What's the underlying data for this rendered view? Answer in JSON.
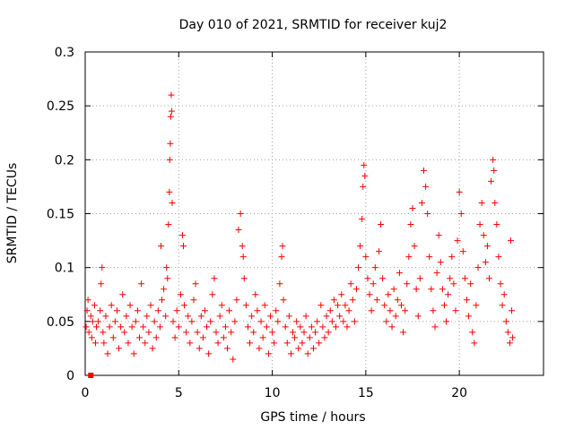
{
  "chart_data": {
    "type": "scatter",
    "title": "Day 010 of 2021, SRMTID for receiver kuj2",
    "xlabel": "GPS time / hours",
    "ylabel": "SRMTID / TECUs",
    "xlim": [
      0,
      24.5
    ],
    "ylim": [
      0,
      0.3
    ],
    "xticks": [
      "0",
      "5",
      "10",
      "15",
      "20"
    ],
    "yticks": [
      "0",
      "0.05",
      "0.1",
      "0.15",
      "0.2",
      "0.25",
      "0.3"
    ],
    "grid": true,
    "legend": "none",
    "marker_color": "#ff0000",
    "marker": "plus",
    "square_marker": {
      "x": 0.3,
      "y": 0.0
    },
    "series": [
      {
        "values": [
          [
            0.05,
            0.045
          ],
          [
            0.1,
            0.06
          ],
          [
            0.15,
            0.07
          ],
          [
            0.2,
            0.04
          ],
          [
            0.3,
            0.055
          ],
          [
            0.35,
            0.035
          ],
          [
            0.4,
            0.05
          ],
          [
            0.5,
            0.065
          ],
          [
            0.55,
            0.03
          ],
          [
            0.6,
            0.045
          ],
          [
            0.7,
            0.05
          ],
          [
            0.8,
            0.06
          ],
          [
            0.85,
            0.085
          ],
          [
            0.9,
            0.1
          ],
          [
            0.95,
            0.04
          ],
          [
            1.0,
            0.03
          ],
          [
            1.1,
            0.055
          ],
          [
            1.2,
            0.02
          ],
          [
            1.3,
            0.045
          ],
          [
            1.4,
            0.065
          ],
          [
            1.5,
            0.035
          ],
          [
            1.6,
            0.05
          ],
          [
            1.7,
            0.06
          ],
          [
            1.8,
            0.025
          ],
          [
            1.9,
            0.045
          ],
          [
            2.0,
            0.075
          ],
          [
            2.1,
            0.04
          ],
          [
            2.2,
            0.055
          ],
          [
            2.3,
            0.03
          ],
          [
            2.4,
            0.065
          ],
          [
            2.5,
            0.045
          ],
          [
            2.6,
            0.02
          ],
          [
            2.7,
            0.05
          ],
          [
            2.8,
            0.06
          ],
          [
            2.9,
            0.035
          ],
          [
            3.0,
            0.085
          ],
          [
            3.1,
            0.045
          ],
          [
            3.2,
            0.03
          ],
          [
            3.3,
            0.055
          ],
          [
            3.4,
            0.04
          ],
          [
            3.5,
            0.065
          ],
          [
            3.6,
            0.025
          ],
          [
            3.7,
            0.05
          ],
          [
            3.8,
            0.035
          ],
          [
            3.9,
            0.06
          ],
          [
            4.0,
            0.045
          ],
          [
            4.05,
            0.12
          ],
          [
            4.1,
            0.07
          ],
          [
            4.2,
            0.08
          ],
          [
            4.3,
            0.055
          ],
          [
            4.35,
            0.1
          ],
          [
            4.4,
            0.09
          ],
          [
            4.45,
            0.14
          ],
          [
            4.5,
            0.17
          ],
          [
            4.52,
            0.2
          ],
          [
            4.55,
            0.215
          ],
          [
            4.57,
            0.24
          ],
          [
            4.6,
            0.26
          ],
          [
            4.62,
            0.245
          ],
          [
            4.65,
            0.16
          ],
          [
            4.7,
            0.05
          ],
          [
            4.8,
            0.035
          ],
          [
            4.9,
            0.06
          ],
          [
            5.0,
            0.045
          ],
          [
            5.1,
            0.075
          ],
          [
            5.2,
            0.13
          ],
          [
            5.25,
            0.12
          ],
          [
            5.3,
            0.065
          ],
          [
            5.4,
            0.04
          ],
          [
            5.5,
            0.055
          ],
          [
            5.6,
            0.03
          ],
          [
            5.7,
            0.05
          ],
          [
            5.8,
            0.07
          ],
          [
            5.9,
            0.085
          ],
          [
            6.0,
            0.04
          ],
          [
            6.1,
            0.025
          ],
          [
            6.2,
            0.055
          ],
          [
            6.3,
            0.035
          ],
          [
            6.4,
            0.06
          ],
          [
            6.5,
            0.045
          ],
          [
            6.6,
            0.02
          ],
          [
            6.7,
            0.05
          ],
          [
            6.8,
            0.075
          ],
          [
            6.9,
            0.09
          ],
          [
            7.0,
            0.04
          ],
          [
            7.1,
            0.03
          ],
          [
            7.2,
            0.055
          ],
          [
            7.3,
            0.065
          ],
          [
            7.4,
            0.035
          ],
          [
            7.5,
            0.045
          ],
          [
            7.6,
            0.025
          ],
          [
            7.7,
            0.06
          ],
          [
            7.8,
            0.04
          ],
          [
            7.9,
            0.015
          ],
          [
            8.0,
            0.05
          ],
          [
            8.1,
            0.07
          ],
          [
            8.2,
            0.135
          ],
          [
            8.3,
            0.15
          ],
          [
            8.4,
            0.12
          ],
          [
            8.45,
            0.11
          ],
          [
            8.5,
            0.09
          ],
          [
            8.6,
            0.065
          ],
          [
            8.7,
            0.045
          ],
          [
            8.8,
            0.03
          ],
          [
            8.9,
            0.055
          ],
          [
            9.0,
            0.04
          ],
          [
            9.1,
            0.075
          ],
          [
            9.2,
            0.06
          ],
          [
            9.3,
            0.025
          ],
          [
            9.4,
            0.05
          ],
          [
            9.5,
            0.035
          ],
          [
            9.6,
            0.065
          ],
          [
            9.7,
            0.045
          ],
          [
            9.8,
            0.02
          ],
          [
            9.9,
            0.055
          ],
          [
            10.0,
            0.04
          ],
          [
            10.1,
            0.03
          ],
          [
            10.2,
            0.06
          ],
          [
            10.3,
            0.05
          ],
          [
            10.4,
            0.085
          ],
          [
            10.5,
            0.11
          ],
          [
            10.55,
            0.12
          ],
          [
            10.6,
            0.07
          ],
          [
            10.7,
            0.045
          ],
          [
            10.8,
            0.03
          ],
          [
            10.9,
            0.055
          ],
          [
            11.0,
            0.02
          ],
          [
            11.1,
            0.04
          ],
          [
            11.2,
            0.035
          ],
          [
            11.3,
            0.05
          ],
          [
            11.4,
            0.025
          ],
          [
            11.5,
            0.045
          ],
          [
            11.6,
            0.03
          ],
          [
            11.7,
            0.04
          ],
          [
            11.8,
            0.055
          ],
          [
            11.9,
            0.02
          ],
          [
            12.0,
            0.035
          ],
          [
            12.1,
            0.045
          ],
          [
            12.2,
            0.025
          ],
          [
            12.3,
            0.04
          ],
          [
            12.4,
            0.05
          ],
          [
            12.5,
            0.03
          ],
          [
            12.6,
            0.065
          ],
          [
            12.7,
            0.045
          ],
          [
            12.8,
            0.035
          ],
          [
            12.9,
            0.055
          ],
          [
            13.0,
            0.04
          ],
          [
            13.1,
            0.06
          ],
          [
            13.2,
            0.05
          ],
          [
            13.3,
            0.07
          ],
          [
            13.4,
            0.045
          ],
          [
            13.5,
            0.065
          ],
          [
            13.6,
            0.055
          ],
          [
            13.7,
            0.075
          ],
          [
            13.8,
            0.05
          ],
          [
            13.9,
            0.065
          ],
          [
            14.0,
            0.045
          ],
          [
            14.1,
            0.06
          ],
          [
            14.2,
            0.085
          ],
          [
            14.3,
            0.07
          ],
          [
            14.4,
            0.05
          ],
          [
            14.5,
            0.08
          ],
          [
            14.6,
            0.1
          ],
          [
            14.7,
            0.12
          ],
          [
            14.8,
            0.145
          ],
          [
            14.85,
            0.175
          ],
          [
            14.9,
            0.195
          ],
          [
            14.95,
            0.185
          ],
          [
            15.0,
            0.11
          ],
          [
            15.1,
            0.09
          ],
          [
            15.2,
            0.075
          ],
          [
            15.3,
            0.06
          ],
          [
            15.4,
            0.085
          ],
          [
            15.5,
            0.1
          ],
          [
            15.6,
            0.07
          ],
          [
            15.7,
            0.115
          ],
          [
            15.8,
            0.14
          ],
          [
            15.9,
            0.09
          ],
          [
            16.0,
            0.065
          ],
          [
            16.1,
            0.05
          ],
          [
            16.2,
            0.075
          ],
          [
            16.3,
            0.06
          ],
          [
            16.4,
            0.045
          ],
          [
            16.5,
            0.08
          ],
          [
            16.6,
            0.055
          ],
          [
            16.7,
            0.07
          ],
          [
            16.8,
            0.095
          ],
          [
            16.9,
            0.065
          ],
          [
            17.0,
            0.04
          ],
          [
            17.1,
            0.06
          ],
          [
            17.2,
            0.085
          ],
          [
            17.3,
            0.11
          ],
          [
            17.4,
            0.14
          ],
          [
            17.5,
            0.155
          ],
          [
            17.6,
            0.12
          ],
          [
            17.7,
            0.08
          ],
          [
            17.8,
            0.055
          ],
          [
            17.9,
            0.09
          ],
          [
            18.0,
            0.16
          ],
          [
            18.1,
            0.19
          ],
          [
            18.2,
            0.175
          ],
          [
            18.3,
            0.15
          ],
          [
            18.4,
            0.11
          ],
          [
            18.5,
            0.08
          ],
          [
            18.6,
            0.06
          ],
          [
            18.7,
            0.045
          ],
          [
            18.8,
            0.095
          ],
          [
            18.9,
            0.13
          ],
          [
            19.0,
            0.105
          ],
          [
            19.1,
            0.08
          ],
          [
            19.2,
            0.065
          ],
          [
            19.3,
            0.05
          ],
          [
            19.4,
            0.075
          ],
          [
            19.5,
            0.09
          ],
          [
            19.6,
            0.11
          ],
          [
            19.7,
            0.085
          ],
          [
            19.8,
            0.06
          ],
          [
            19.9,
            0.125
          ],
          [
            20.0,
            0.17
          ],
          [
            20.1,
            0.15
          ],
          [
            20.2,
            0.115
          ],
          [
            20.3,
            0.09
          ],
          [
            20.4,
            0.07
          ],
          [
            20.5,
            0.055
          ],
          [
            20.6,
            0.085
          ],
          [
            20.7,
            0.04
          ],
          [
            20.8,
            0.03
          ],
          [
            20.9,
            0.065
          ],
          [
            21.0,
            0.1
          ],
          [
            21.1,
            0.14
          ],
          [
            21.2,
            0.16
          ],
          [
            21.3,
            0.13
          ],
          [
            21.4,
            0.105
          ],
          [
            21.5,
            0.12
          ],
          [
            21.6,
            0.09
          ],
          [
            21.7,
            0.18
          ],
          [
            21.8,
            0.2
          ],
          [
            21.85,
            0.19
          ],
          [
            21.9,
            0.16
          ],
          [
            22.0,
            0.14
          ],
          [
            22.1,
            0.11
          ],
          [
            22.2,
            0.085
          ],
          [
            22.3,
            0.065
          ],
          [
            22.4,
            0.075
          ],
          [
            22.5,
            0.05
          ],
          [
            22.6,
            0.04
          ],
          [
            22.7,
            0.03
          ],
          [
            22.75,
            0.125
          ],
          [
            22.8,
            0.06
          ],
          [
            22.85,
            0.035
          ]
        ]
      }
    ]
  }
}
